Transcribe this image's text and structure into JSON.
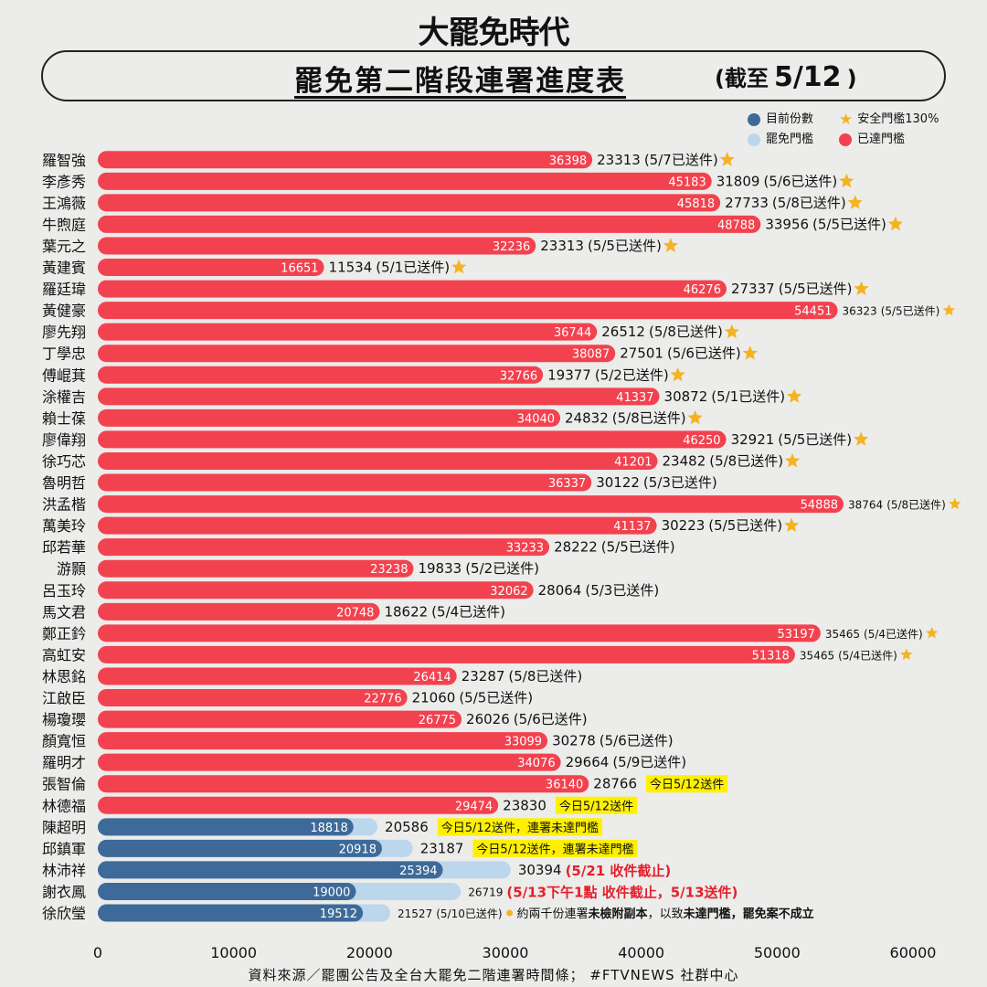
{
  "brand": "大罷免時代",
  "title": {
    "main": "罷免第二階段連署進度表",
    "cutoff_open": "(截至",
    "cutoff_date": "5/12",
    "cutoff_close": ")"
  },
  "legend": {
    "current_label": "目前份數",
    "threshold_label": "罷免門檻",
    "safe_label": "安全門檻130%",
    "reached_label": "已達門檻",
    "colors": {
      "current": "#3d6a99",
      "threshold": "#bcd6ec",
      "reached": "#f2424f",
      "star": "#f4b323",
      "highlight": "#fef000",
      "warn_text": "#e3202c"
    }
  },
  "chart_data": {
    "type": "bar",
    "orientation": "horizontal",
    "xlim": [
      0,
      60000
    ],
    "xticks": [
      0,
      10000,
      20000,
      30000,
      40000,
      50000,
      60000
    ],
    "series": [
      {
        "name": "目前份數"
      },
      {
        "name": "罷免門檻"
      }
    ],
    "rows": [
      {
        "name": "羅智強",
        "current": 36398,
        "threshold": 23313,
        "note": "(5/7已送件)",
        "star": true,
        "reached": true
      },
      {
        "name": "李彥秀",
        "current": 45183,
        "threshold": 31809,
        "note": "(5/6已送件)",
        "star": true,
        "reached": true
      },
      {
        "name": "王鴻薇",
        "current": 45818,
        "threshold": 27733,
        "note": "(5/8已送件)",
        "star": true,
        "reached": true
      },
      {
        "name": "牛煦庭",
        "current": 48788,
        "threshold": 33956,
        "note": "(5/5已送件)",
        "star": true,
        "reached": true
      },
      {
        "name": "葉元之",
        "current": 32236,
        "threshold": 23313,
        "note": "(5/5已送件)",
        "star": true,
        "reached": true
      },
      {
        "name": "黃建賓",
        "current": 16651,
        "threshold": 11534,
        "note": "(5/1已送件)",
        "star": true,
        "reached": true
      },
      {
        "name": "羅廷瑋",
        "current": 46276,
        "threshold": 27337,
        "note": "(5/5已送件)",
        "star": true,
        "reached": true
      },
      {
        "name": "黃健豪",
        "current": 54451,
        "threshold": 36323,
        "note": "(5/5已送件)",
        "star": true,
        "reached": true,
        "small": true
      },
      {
        "name": "廖先翔",
        "current": 36744,
        "threshold": 26512,
        "note": "(5/8已送件)",
        "star": true,
        "reached": true
      },
      {
        "name": "丁學忠",
        "current": 38087,
        "threshold": 27501,
        "note": "(5/6已送件)",
        "star": true,
        "reached": true
      },
      {
        "name": "傅崐萁",
        "current": 32766,
        "threshold": 19377,
        "note": "(5/2已送件)",
        "star": true,
        "reached": true
      },
      {
        "name": "涂權吉",
        "current": 41337,
        "threshold": 30872,
        "note": "(5/1已送件)",
        "star": true,
        "reached": true
      },
      {
        "name": "賴士葆",
        "current": 34040,
        "threshold": 24832,
        "note": "(5/8已送件)",
        "star": true,
        "reached": true
      },
      {
        "name": "廖偉翔",
        "current": 46250,
        "threshold": 32921,
        "note": "(5/5已送件)",
        "star": true,
        "reached": true
      },
      {
        "name": "徐巧芯",
        "current": 41201,
        "threshold": 23482,
        "note": "(5/8已送件)",
        "star": true,
        "reached": true
      },
      {
        "name": "魯明哲",
        "current": 36337,
        "threshold": 30122,
        "note": "(5/3已送件)",
        "star": false,
        "reached": true
      },
      {
        "name": "洪孟楷",
        "current": 54888,
        "threshold": 38764,
        "note": "(5/8已送件)",
        "star": true,
        "reached": true,
        "small": true
      },
      {
        "name": "萬美玲",
        "current": 41137,
        "threshold": 30223,
        "note": "(5/5已送件)",
        "star": true,
        "reached": true
      },
      {
        "name": "邱若華",
        "current": 33233,
        "threshold": 28222,
        "note": "(5/5已送件)",
        "star": false,
        "reached": true
      },
      {
        "name": "游顥",
        "current": 23238,
        "threshold": 19833,
        "note": "(5/2已送件)",
        "star": false,
        "reached": true
      },
      {
        "name": "呂玉玲",
        "current": 32062,
        "threshold": 28064,
        "note": "(5/3已送件)",
        "star": false,
        "reached": true
      },
      {
        "name": "馬文君",
        "current": 20748,
        "threshold": 18622,
        "note": "(5/4已送件)",
        "star": false,
        "reached": true
      },
      {
        "name": "鄭正鈐",
        "current": 53197,
        "threshold": 35465,
        "note": "(5/4已送件)",
        "star": true,
        "reached": true,
        "small": true
      },
      {
        "name": "高虹安",
        "current": 51318,
        "threshold": 35465,
        "note": "(5/4已送件)",
        "star": true,
        "reached": true,
        "small": true
      },
      {
        "name": "林思銘",
        "current": 26414,
        "threshold": 23287,
        "note": "(5/8已送件)",
        "star": false,
        "reached": true
      },
      {
        "name": "江啟臣",
        "current": 22776,
        "threshold": 21060,
        "note": "(5/5已送件)",
        "star": false,
        "reached": true
      },
      {
        "name": "楊瓊瓔",
        "current": 26775,
        "threshold": 26026,
        "note": "(5/6已送件)",
        "star": false,
        "reached": true
      },
      {
        "name": "顏寬恒",
        "current": 33099,
        "threshold": 30278,
        "note": "(5/6已送件)",
        "star": false,
        "reached": true
      },
      {
        "name": "羅明才",
        "current": 34076,
        "threshold": 29664,
        "note": "(5/9已送件)",
        "star": false,
        "reached": true
      },
      {
        "name": "張智倫",
        "current": 36140,
        "threshold": 28766,
        "note": "今日5/12送件",
        "note_style": "highlight",
        "star": false,
        "reached": true
      },
      {
        "name": "林德福",
        "current": 29474,
        "threshold": 23830,
        "note": "今日5/12送件",
        "note_style": "highlight",
        "star": false,
        "reached": true
      },
      {
        "name": "陳超明",
        "current": 18818,
        "threshold": 20586,
        "note": "今日5/12送件，連署未達門檻",
        "note_style": "highlight",
        "star": false,
        "reached": false
      },
      {
        "name": "邱鎮軍",
        "current": 20918,
        "threshold": 23187,
        "note": "今日5/12送件，連署未達門檻",
        "note_style": "highlight",
        "star": false,
        "reached": false
      },
      {
        "name": "林沛祥",
        "current": 25394,
        "threshold": 30394,
        "note": "(5/21 收件截止)",
        "note_style": "warn",
        "star": false,
        "reached": false
      },
      {
        "name": "謝衣鳳",
        "current": 19000,
        "threshold": 26719,
        "note": "(5/13下午1點 收件截止，5/13送件)",
        "note_style": "warn",
        "star": false,
        "reached": false,
        "small_threshold": true
      },
      {
        "name": "徐欣瑩",
        "current": 19512,
        "threshold": 21527,
        "note": "(5/10已送件)",
        "note_style": "small",
        "star": false,
        "reached": false,
        "small_threshold": true,
        "extra_note_parts": [
          {
            "text": "約兩千份連署",
            "bold": false
          },
          {
            "text": "未檢附副本",
            "bold": true
          },
          {
            "text": "，以致",
            "bold": false
          },
          {
            "text": "未達門檻",
            "bold": true
          },
          {
            "text": "，罷免案不成立",
            "bold": true
          }
        ]
      }
    ]
  },
  "footer": "資料來源／罷團公告及全台大罷免二階連署時間條； #FTVNEWS 社群中心"
}
